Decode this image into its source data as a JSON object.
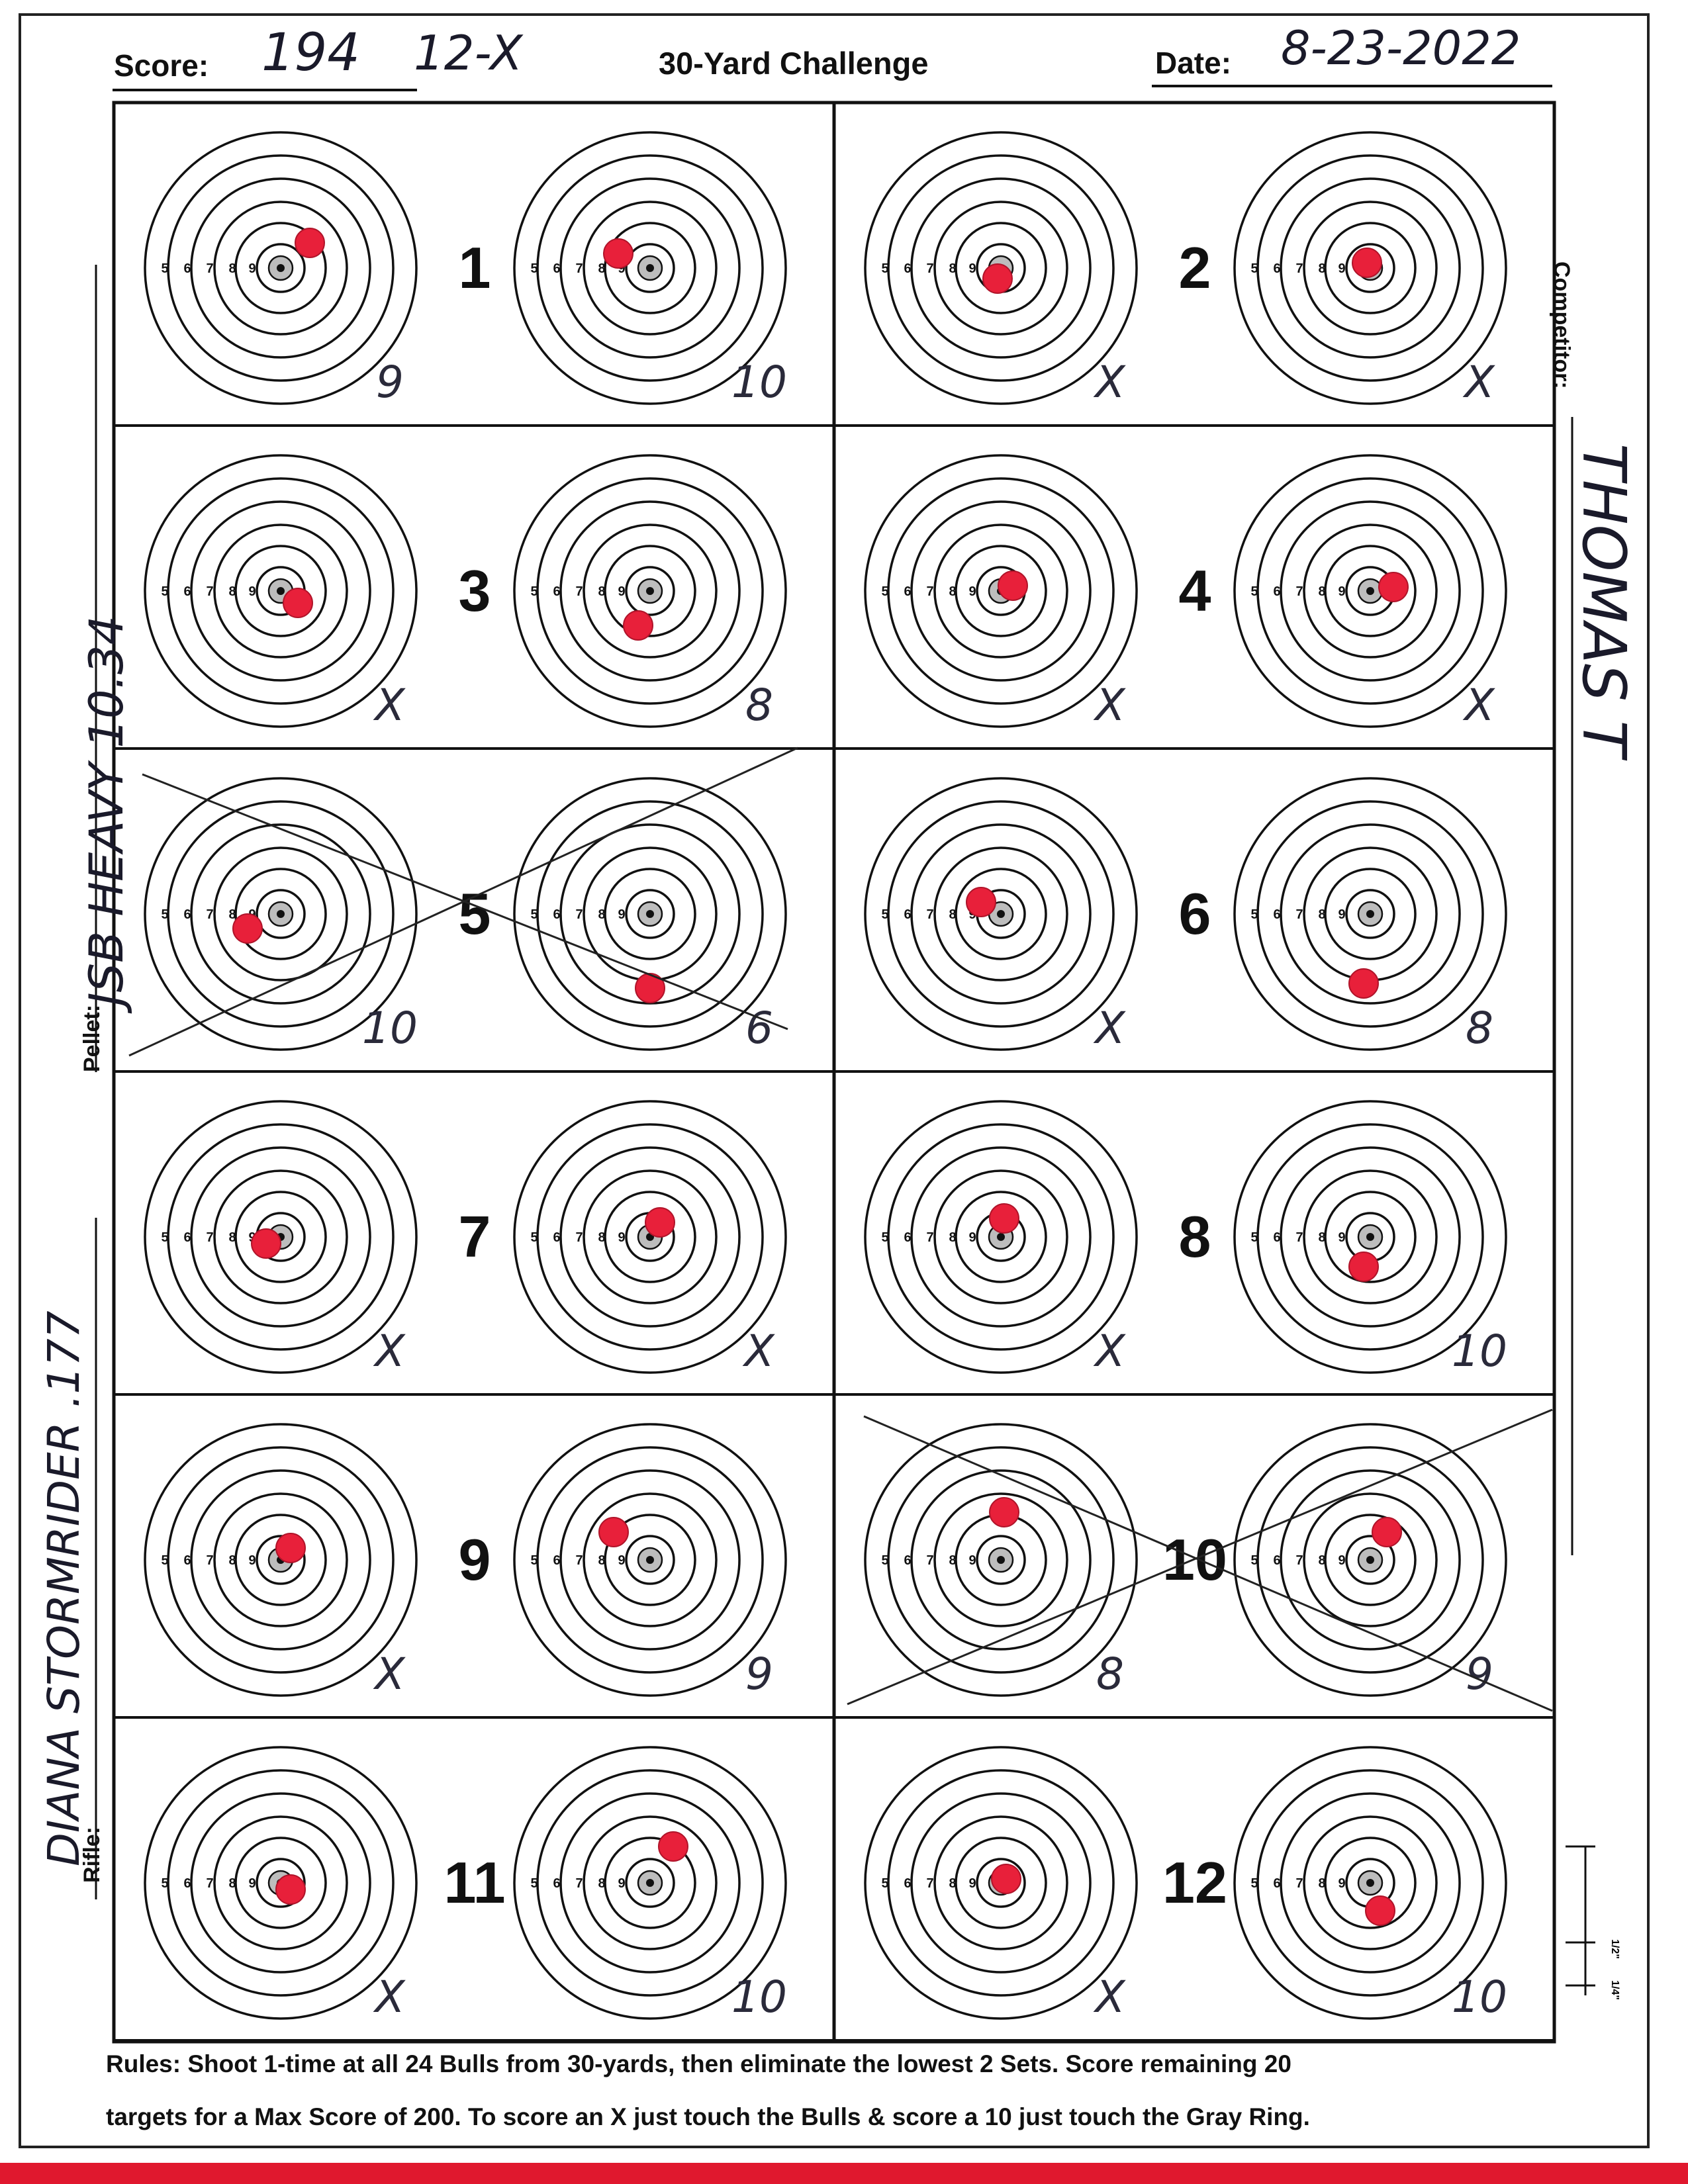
{
  "header": {
    "score_label": "Score:",
    "score_value": "194",
    "x_count": "12-X",
    "title": "30-Yard Challenge",
    "date_label": "Date:",
    "date_value": "8-23-2022"
  },
  "side_labels": {
    "competitor_label": "Competitor:",
    "competitor_value": "THOMAS T",
    "pellet_label": "Pellet:",
    "pellet_value": "JSB HEAVY 10.34",
    "rifle_label": "Rifle:",
    "rifle_value": "DIANA STORMRIDER .177"
  },
  "ring_numbers": [
    "5",
    "6",
    "7",
    "8",
    "9"
  ],
  "sets": [
    {
      "number": "1",
      "left_score": "9",
      "right_score": "10",
      "crossed_out": false
    },
    {
      "number": "2",
      "left_score": "X",
      "right_score": "X",
      "crossed_out": false
    },
    {
      "number": "3",
      "left_score": "X",
      "right_score": "8",
      "crossed_out": false
    },
    {
      "number": "4",
      "left_score": "X",
      "right_score": "X",
      "crossed_out": false
    },
    {
      "number": "5",
      "left_score": "10",
      "right_score": "6",
      "crossed_out": true
    },
    {
      "number": "6",
      "left_score": "X",
      "right_score": "8",
      "crossed_out": false
    },
    {
      "number": "7",
      "left_score": "X",
      "right_score": "X",
      "crossed_out": false
    },
    {
      "number": "8",
      "left_score": "X",
      "right_score": "10",
      "crossed_out": false
    },
    {
      "number": "9",
      "left_score": "X",
      "right_score": "9",
      "crossed_out": false
    },
    {
      "number": "10",
      "left_score": "8",
      "right_score": "9",
      "crossed_out": true
    },
    {
      "number": "11",
      "left_score": "X",
      "right_score": "10",
      "crossed_out": false
    },
    {
      "number": "12",
      "left_score": "X",
      "right_score": "10",
      "crossed_out": false
    }
  ],
  "rules": {
    "line1": "Rules: Shoot 1-time at all 24 Bulls from 30-yards, then eliminate the lowest 2 Sets. Score remaining 20",
    "line2": "targets for a Max Score of 200. To score an X just touch the Bulls & score a 10 just touch the Gray Ring."
  },
  "scale": {
    "tick_labels": [
      "1/2\"",
      "1/4\""
    ]
  },
  "colors": {
    "ink": "#111111",
    "pencil": "#2a2a3a",
    "hole": "#e8203a",
    "red_strip": "#e0182e"
  }
}
